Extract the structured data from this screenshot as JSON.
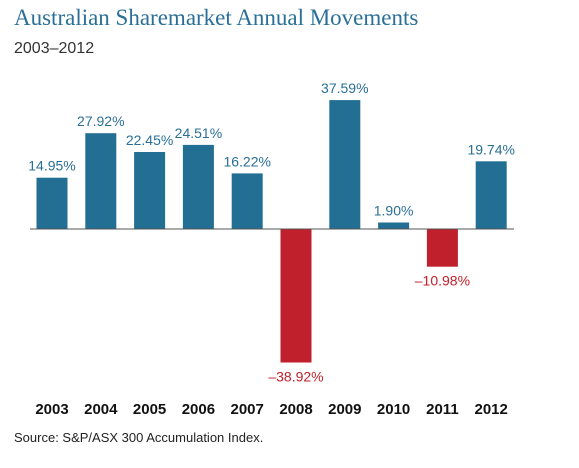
{
  "chart_data": {
    "type": "bar",
    "title": "Australian Sharemarket Annual Movements",
    "subtitle": "2003–2012",
    "source": "Source: S&P/ASX 300 Accumulation Index.",
    "categories": [
      "2003",
      "2004",
      "2005",
      "2006",
      "2007",
      "2008",
      "2009",
      "2010",
      "2011",
      "2012"
    ],
    "values": [
      14.95,
      27.92,
      22.45,
      24.51,
      16.22,
      -38.92,
      37.59,
      1.9,
      -10.98,
      19.74
    ],
    "labels": [
      "14.95%",
      "27.92%",
      "22.45%",
      "24.51%",
      "16.22%",
      "–38.92%",
      "37.59%",
      "1.90%",
      "–10.98%",
      "19.74%"
    ],
    "ylim": [
      -38.92,
      37.59
    ],
    "grid": false,
    "colors": {
      "positive": "#236e93",
      "negative": "#c0202b",
      "positive_label": "#2a6f97",
      "negative_label": "#c0202b",
      "title": "#2a6f97"
    }
  }
}
